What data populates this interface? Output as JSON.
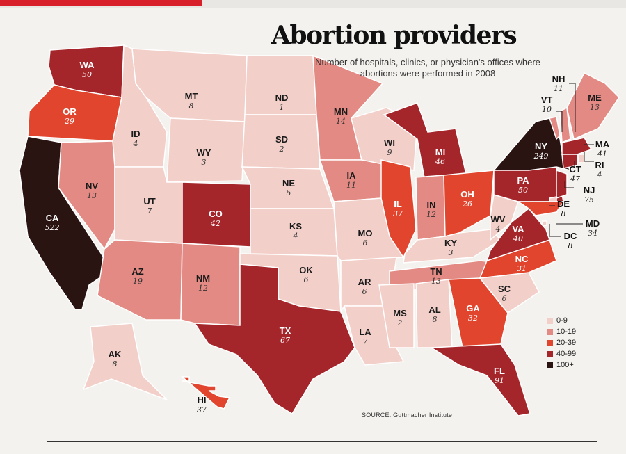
{
  "title": "Abortion providers",
  "subtitle": "Number of hospitals, clinics, or physician's offices where abortions were performed in 2008",
  "source": "SOURCE: Guttmacher Institute",
  "legend": [
    {
      "label": "0-9",
      "color": "#f2cfc8"
    },
    {
      "label": "10-19",
      "color": "#e28a83"
    },
    {
      "label": "20-39",
      "color": "#e2452e"
    },
    {
      "label": "40-99",
      "color": "#a4252a"
    },
    {
      "label": "100+",
      "color": "#2a1412"
    }
  ],
  "states": [
    {
      "abbr": "WA",
      "value": "50",
      "color": "#a4252a"
    },
    {
      "abbr": "OR",
      "value": "29",
      "color": "#e2452e"
    },
    {
      "abbr": "CA",
      "value": "522",
      "color": "#2a1412"
    },
    {
      "abbr": "ID",
      "value": "4",
      "color": "#f2cfc8"
    },
    {
      "abbr": "NV",
      "value": "13",
      "color": "#e28a83"
    },
    {
      "abbr": "MT",
      "value": "8",
      "color": "#f2cfc8"
    },
    {
      "abbr": "WY",
      "value": "3",
      "color": "#f2cfc8"
    },
    {
      "abbr": "UT",
      "value": "7",
      "color": "#f2cfc8"
    },
    {
      "abbr": "AZ",
      "value": "19",
      "color": "#e28a83"
    },
    {
      "abbr": "CO",
      "value": "42",
      "color": "#a4252a"
    },
    {
      "abbr": "NM",
      "value": "12",
      "color": "#e28a83"
    },
    {
      "abbr": "ND",
      "value": "1",
      "color": "#f2cfc8"
    },
    {
      "abbr": "SD",
      "value": "2",
      "color": "#f2cfc8"
    },
    {
      "abbr": "NE",
      "value": "5",
      "color": "#f2cfc8"
    },
    {
      "abbr": "KS",
      "value": "4",
      "color": "#f2cfc8"
    },
    {
      "abbr": "OK",
      "value": "6",
      "color": "#f2cfc8"
    },
    {
      "abbr": "TX",
      "value": "67",
      "color": "#a4252a"
    },
    {
      "abbr": "MN",
      "value": "14",
      "color": "#e28a83"
    },
    {
      "abbr": "IA",
      "value": "11",
      "color": "#e28a83"
    },
    {
      "abbr": "MO",
      "value": "6",
      "color": "#f2cfc8"
    },
    {
      "abbr": "AR",
      "value": "6",
      "color": "#f2cfc8"
    },
    {
      "abbr": "LA",
      "value": "7",
      "color": "#f2cfc8"
    },
    {
      "abbr": "WI",
      "value": "9",
      "color": "#f2cfc8"
    },
    {
      "abbr": "IL",
      "value": "37",
      "color": "#e2452e"
    },
    {
      "abbr": "MI",
      "value": "46",
      "color": "#a4252a"
    },
    {
      "abbr": "IN",
      "value": "12",
      "color": "#e28a83"
    },
    {
      "abbr": "OH",
      "value": "26",
      "color": "#e2452e"
    },
    {
      "abbr": "KY",
      "value": "3",
      "color": "#f2cfc8"
    },
    {
      "abbr": "TN",
      "value": "13",
      "color": "#e28a83"
    },
    {
      "abbr": "MS",
      "value": "2",
      "color": "#f2cfc8"
    },
    {
      "abbr": "AL",
      "value": "8",
      "color": "#f2cfc8"
    },
    {
      "abbr": "GA",
      "value": "32",
      "color": "#e2452e"
    },
    {
      "abbr": "FL",
      "value": "91",
      "color": "#a4252a"
    },
    {
      "abbr": "SC",
      "value": "6",
      "color": "#f2cfc8"
    },
    {
      "abbr": "NC",
      "value": "31",
      "color": "#e2452e"
    },
    {
      "abbr": "VA",
      "value": "40",
      "color": "#a4252a"
    },
    {
      "abbr": "WV",
      "value": "4",
      "color": "#f2cfc8"
    },
    {
      "abbr": "PA",
      "value": "50",
      "color": "#a4252a"
    },
    {
      "abbr": "NY",
      "value": "249",
      "color": "#2a1412"
    },
    {
      "abbr": "VT",
      "value": "10",
      "color": "#e28a83"
    },
    {
      "abbr": "NH",
      "value": "11",
      "color": "#e28a83"
    },
    {
      "abbr": "ME",
      "value": "13",
      "color": "#e28a83"
    },
    {
      "abbr": "MA",
      "value": "41",
      "color": "#a4252a"
    },
    {
      "abbr": "RI",
      "value": "4",
      "color": "#f2cfc8"
    },
    {
      "abbr": "CT",
      "value": "47",
      "color": "#a4252a"
    },
    {
      "abbr": "NJ",
      "value": "75",
      "color": "#a4252a"
    },
    {
      "abbr": "DE",
      "value": "8",
      "color": "#f2cfc8"
    },
    {
      "abbr": "MD",
      "value": "34",
      "color": "#e2452e"
    },
    {
      "abbr": "DC",
      "value": "8",
      "color": "#f2cfc8"
    },
    {
      "abbr": "AK",
      "value": "8",
      "color": "#f2cfc8"
    },
    {
      "abbr": "HI",
      "value": "37",
      "color": "#e2452e"
    }
  ]
}
